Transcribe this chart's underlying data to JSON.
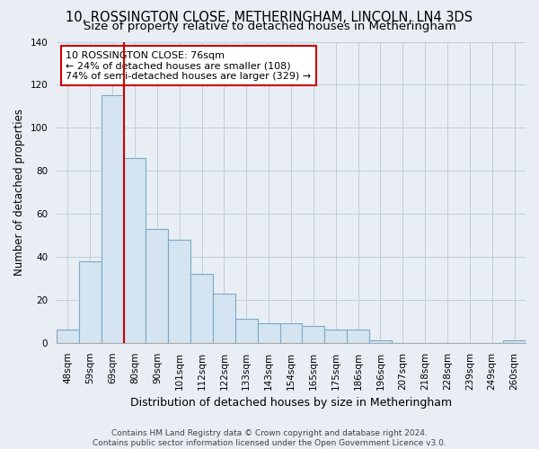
{
  "title": "10, ROSSINGTON CLOSE, METHERINGHAM, LINCOLN, LN4 3DS",
  "subtitle": "Size of property relative to detached houses in Metheringham",
  "xlabel": "Distribution of detached houses by size in Metheringham",
  "ylabel": "Number of detached properties",
  "bar_labels": [
    "48sqm",
    "59sqm",
    "69sqm",
    "80sqm",
    "90sqm",
    "101sqm",
    "112sqm",
    "122sqm",
    "133sqm",
    "143sqm",
    "154sqm",
    "165sqm",
    "175sqm",
    "186sqm",
    "196sqm",
    "207sqm",
    "218sqm",
    "228sqm",
    "239sqm",
    "249sqm",
    "260sqm"
  ],
  "bar_values": [
    6,
    38,
    115,
    86,
    53,
    48,
    32,
    23,
    11,
    9,
    9,
    8,
    6,
    6,
    1,
    0,
    0,
    0,
    0,
    0,
    1
  ],
  "bar_facecolor": "#d4e4f0",
  "bar_edgecolor": "#7aaac8",
  "red_line_color": "#cc0000",
  "red_line_x": 2.5,
  "ylim": [
    0,
    140
  ],
  "yticks": [
    0,
    20,
    40,
    60,
    80,
    100,
    120,
    140
  ],
  "annotation_text_line1": "10 ROSSINGTON CLOSE: 76sqm",
  "annotation_text_line2": "← 24% of detached houses are smaller (108)",
  "annotation_text_line3": "74% of semi-detached houses are larger (329) →",
  "footer_line1": "Contains HM Land Registry data © Crown copyright and database right 2024.",
  "footer_line2": "Contains public sector information licensed under the Open Government Licence v3.0.",
  "bg_color": "#e8eef4",
  "plot_bg_color": "#e8eef4",
  "grid_color": "#c0ccd8",
  "title_fontsize": 10.5,
  "subtitle_fontsize": 9.5,
  "ylabel_fontsize": 8.5,
  "xlabel_fontsize": 9,
  "tick_fontsize": 7.5,
  "footer_fontsize": 6.5
}
